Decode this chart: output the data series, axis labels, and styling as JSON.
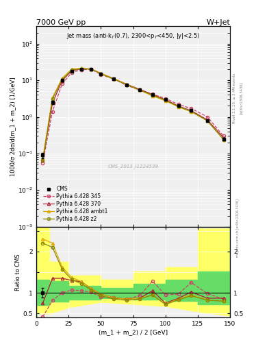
{
  "title_left": "7000 GeV pp",
  "title_right": "W+Jet",
  "annotation": "Jet mass (anti-k$_T$(0.7), 2300<p$_T$<450, |y|<2.5)",
  "cms_label": "CMS_2013_I1224539",
  "rivet_label": "Rivet 3.1.10, ≥ 3.4M events",
  "arxiv_label": "[arXiv:1306.3436]",
  "mcplots_label": "mcplots.cern.ch",
  "xlabel": "(m_1 + m_2) / 2 [GeV]",
  "ylabel_main": "1000/σ 2dσ/d(m_1 + m_2) [1/GeV]",
  "ylabel_ratio": "Ratio to CMS",
  "xlim": [
    0,
    150
  ],
  "ylim_main": [
    0.001,
    300
  ],
  "ylim_ratio": [
    0.4,
    2.6
  ],
  "x_centers": [
    5,
    12.5,
    20,
    27.5,
    35,
    42.5,
    50,
    60,
    70,
    80,
    90,
    100,
    110,
    120,
    132.5,
    145
  ],
  "cms_y": [
    0.09,
    2.5,
    10.0,
    18.0,
    20.0,
    20.0,
    15.0,
    11.0,
    7.5,
    5.5,
    4.0,
    3.0,
    2.0,
    1.5,
    0.8,
    0.25
  ],
  "cms_yerr": [
    0.015,
    0.25,
    0.6,
    0.8,
    0.8,
    0.8,
    0.6,
    0.5,
    0.35,
    0.25,
    0.18,
    0.12,
    0.09,
    0.07,
    0.04,
    0.015
  ],
  "py345_y": [
    0.055,
    1.4,
    8.0,
    16.5,
    19.5,
    20.0,
    14.5,
    10.8,
    7.3,
    5.4,
    4.2,
    3.2,
    2.2,
    1.7,
    1.0,
    0.3
  ],
  "py370_y": [
    0.065,
    2.4,
    9.8,
    18.5,
    20.5,
    20.5,
    15.5,
    11.2,
    7.8,
    5.7,
    4.1,
    2.95,
    1.98,
    1.48,
    0.83,
    0.27
  ],
  "pyambt_y": [
    0.075,
    3.4,
    11.5,
    20.5,
    21.5,
    20.5,
    15.5,
    11.2,
    7.8,
    5.4,
    3.75,
    2.75,
    1.88,
    1.38,
    0.78,
    0.24
  ],
  "pyz2_y": [
    0.065,
    3.1,
    10.5,
    19.5,
    20.5,
    20.5,
    15.0,
    10.8,
    7.6,
    5.4,
    3.95,
    2.85,
    1.92,
    1.42,
    0.78,
    0.24
  ],
  "ratio_py345": [
    0.42,
    0.82,
    1.0,
    1.07,
    1.05,
    1.02,
    0.9,
    0.88,
    0.85,
    0.93,
    1.28,
    0.95,
    0.97,
    1.25,
    0.98,
    0.85
  ],
  "ratio_py370": [
    0.75,
    1.35,
    1.35,
    1.3,
    1.27,
    1.1,
    0.97,
    0.88,
    0.85,
    0.87,
    1.05,
    0.75,
    0.87,
    1.02,
    0.87,
    0.87
  ],
  "ratio_pyambt": [
    2.3,
    2.2,
    1.62,
    1.37,
    1.27,
    1.1,
    0.97,
    0.88,
    0.85,
    0.87,
    0.95,
    0.73,
    0.85,
    0.95,
    0.83,
    0.8
  ],
  "ratio_pyz2": [
    2.2,
    2.1,
    1.57,
    1.32,
    1.22,
    1.07,
    0.93,
    0.85,
    0.82,
    0.85,
    0.95,
    0.72,
    0.83,
    0.93,
    0.82,
    0.8
  ],
  "yellow_band_x": [
    0,
    0,
    10,
    10,
    25,
    25,
    50,
    50,
    75,
    75,
    100,
    100,
    125,
    125,
    150,
    150
  ],
  "yellow_band_ylo": [
    0.4,
    0.5,
    0.5,
    0.5,
    0.65,
    0.65,
    0.78,
    0.78,
    0.73,
    0.73,
    0.68,
    0.68,
    0.55,
    0.55,
    0.45,
    0.4
  ],
  "yellow_band_yhi": [
    2.6,
    2.6,
    2.6,
    1.75,
    1.75,
    1.42,
    1.42,
    1.32,
    1.32,
    1.52,
    1.52,
    1.62,
    1.62,
    2.55,
    2.55,
    2.6
  ],
  "green_band_x": [
    0,
    0,
    10,
    10,
    25,
    25,
    50,
    50,
    75,
    75,
    100,
    100,
    125,
    125,
    150,
    150
  ],
  "green_band_ylo": [
    0.4,
    0.7,
    0.7,
    0.78,
    0.78,
    0.84,
    0.84,
    0.87,
    0.87,
    0.84,
    0.84,
    0.8,
    0.8,
    0.72,
    0.72,
    0.4
  ],
  "green_band_yhi": [
    2.6,
    1.32,
    1.32,
    1.28,
    1.28,
    1.17,
    1.17,
    1.12,
    1.12,
    1.22,
    1.22,
    1.32,
    1.32,
    1.52,
    1.52,
    2.6
  ],
  "color_py345": "#cc4466",
  "color_py370": "#aa2233",
  "color_pyambt": "#ddaa00",
  "color_pyz2": "#888800",
  "color_cms": "#000000"
}
